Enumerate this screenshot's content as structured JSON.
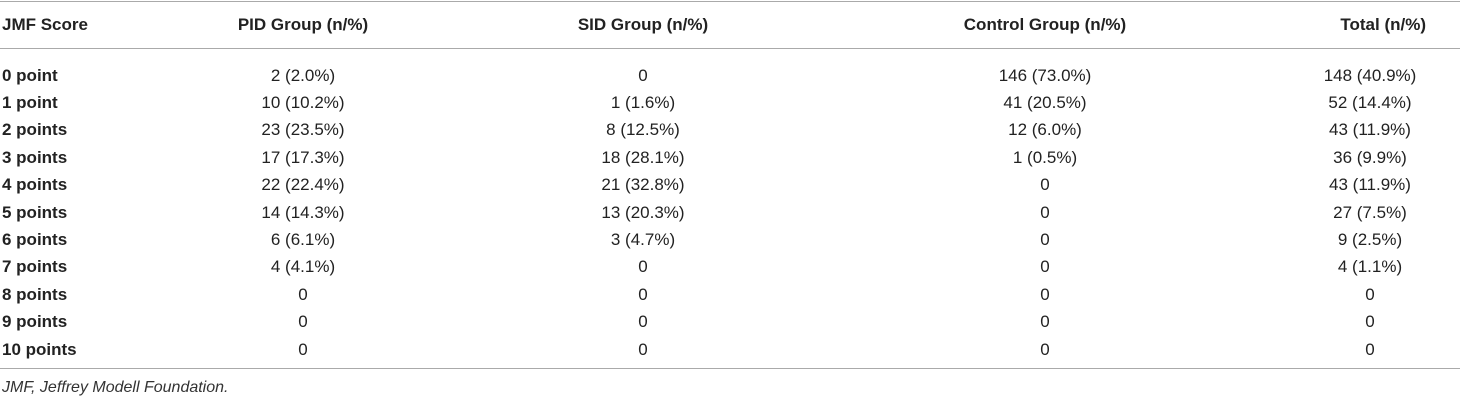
{
  "table": {
    "header": [
      "JMF Score",
      "PID Group (n/%)",
      "SID Group (n/%)",
      "Control Group (n/%)",
      "Total (n/%)"
    ],
    "rows": [
      [
        "0 point",
        "2 (2.0%)",
        "0",
        "146 (73.0%)",
        "148 (40.9%)"
      ],
      [
        "1 point",
        "10 (10.2%)",
        "1 (1.6%)",
        "41 (20.5%)",
        "52 (14.4%)"
      ],
      [
        "2 points",
        "23 (23.5%)",
        "8 (12.5%)",
        "12 (6.0%)",
        "43 (11.9%)"
      ],
      [
        "3 points",
        "17 (17.3%)",
        "18 (28.1%)",
        "1 (0.5%)",
        "36 (9.9%)"
      ],
      [
        "4 points",
        "22 (22.4%)",
        "21 (32.8%)",
        "0",
        "43 (11.9%)"
      ],
      [
        "5 points",
        "14 (14.3%)",
        "13 (20.3%)",
        "0",
        "27 (7.5%)"
      ],
      [
        "6 points",
        "6 (6.1%)",
        "3 (4.7%)",
        "0",
        "9 (2.5%)"
      ],
      [
        "7 points",
        "4 (4.1%)",
        "0",
        "0",
        "4 (1.1%)"
      ],
      [
        "8 points",
        "0",
        "0",
        "0",
        "0"
      ],
      [
        "9 points",
        "0",
        "0",
        "0",
        "0"
      ],
      [
        "10 points",
        "0",
        "0",
        "0",
        "0"
      ]
    ],
    "footnote": "JMF, Jeffrey Modell Foundation."
  }
}
